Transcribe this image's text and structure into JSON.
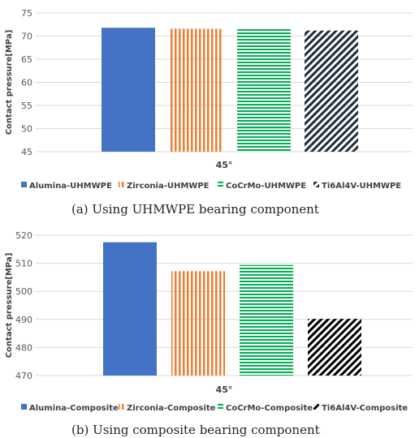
{
  "chart_data": [
    {
      "type": "bar",
      "categories": [
        "45°"
      ],
      "ylabel": "Contact pressure[MPa]",
      "ylim": [
        45,
        75
      ],
      "yticks": [
        45,
        50,
        55,
        60,
        65,
        70,
        75
      ],
      "caption": "(a) Using UHMWPE bearing component",
      "legend_position": "bottom",
      "series": [
        {
          "name": "Alumina-UHMWPE",
          "values": [
            71.8
          ],
          "color": "#4472c4",
          "pattern": "solid"
        },
        {
          "name": "Zirconia-UHMWPE",
          "values": [
            71.6
          ],
          "color": "#ed7d31",
          "pattern": "vertical"
        },
        {
          "name": "CoCrMo-UHMWPE",
          "values": [
            71.6
          ],
          "color": "#00b050",
          "pattern": "horizontal"
        },
        {
          "name": "Ti6Al4V-UHMWPE",
          "values": [
            71.2
          ],
          "color": "#1f2d3d",
          "pattern": "diagonal"
        }
      ]
    },
    {
      "type": "bar",
      "categories": [
        "45°"
      ],
      "ylabel": "Contact pressure[MPa]",
      "ylim": [
        470,
        520
      ],
      "yticks": [
        470,
        480,
        490,
        500,
        510,
        520
      ],
      "caption": "(b) Using composite bearing component",
      "legend_position": "bottom",
      "series": [
        {
          "name": "Alumina-Composite",
          "values": [
            517.5
          ],
          "color": "#4472c4",
          "pattern": "solid"
        },
        {
          "name": "Zirconia-Composite",
          "values": [
            507.2
          ],
          "color": "#ed7d31",
          "pattern": "vertical"
        },
        {
          "name": "CoCrMo-Composite",
          "values": [
            509.4
          ],
          "color": "#00b050",
          "pattern": "horizontal"
        },
        {
          "name": "Ti6Al4V-Composite",
          "values": [
            490.2
          ],
          "color": "#000000",
          "pattern": "diagonal"
        }
      ]
    }
  ]
}
